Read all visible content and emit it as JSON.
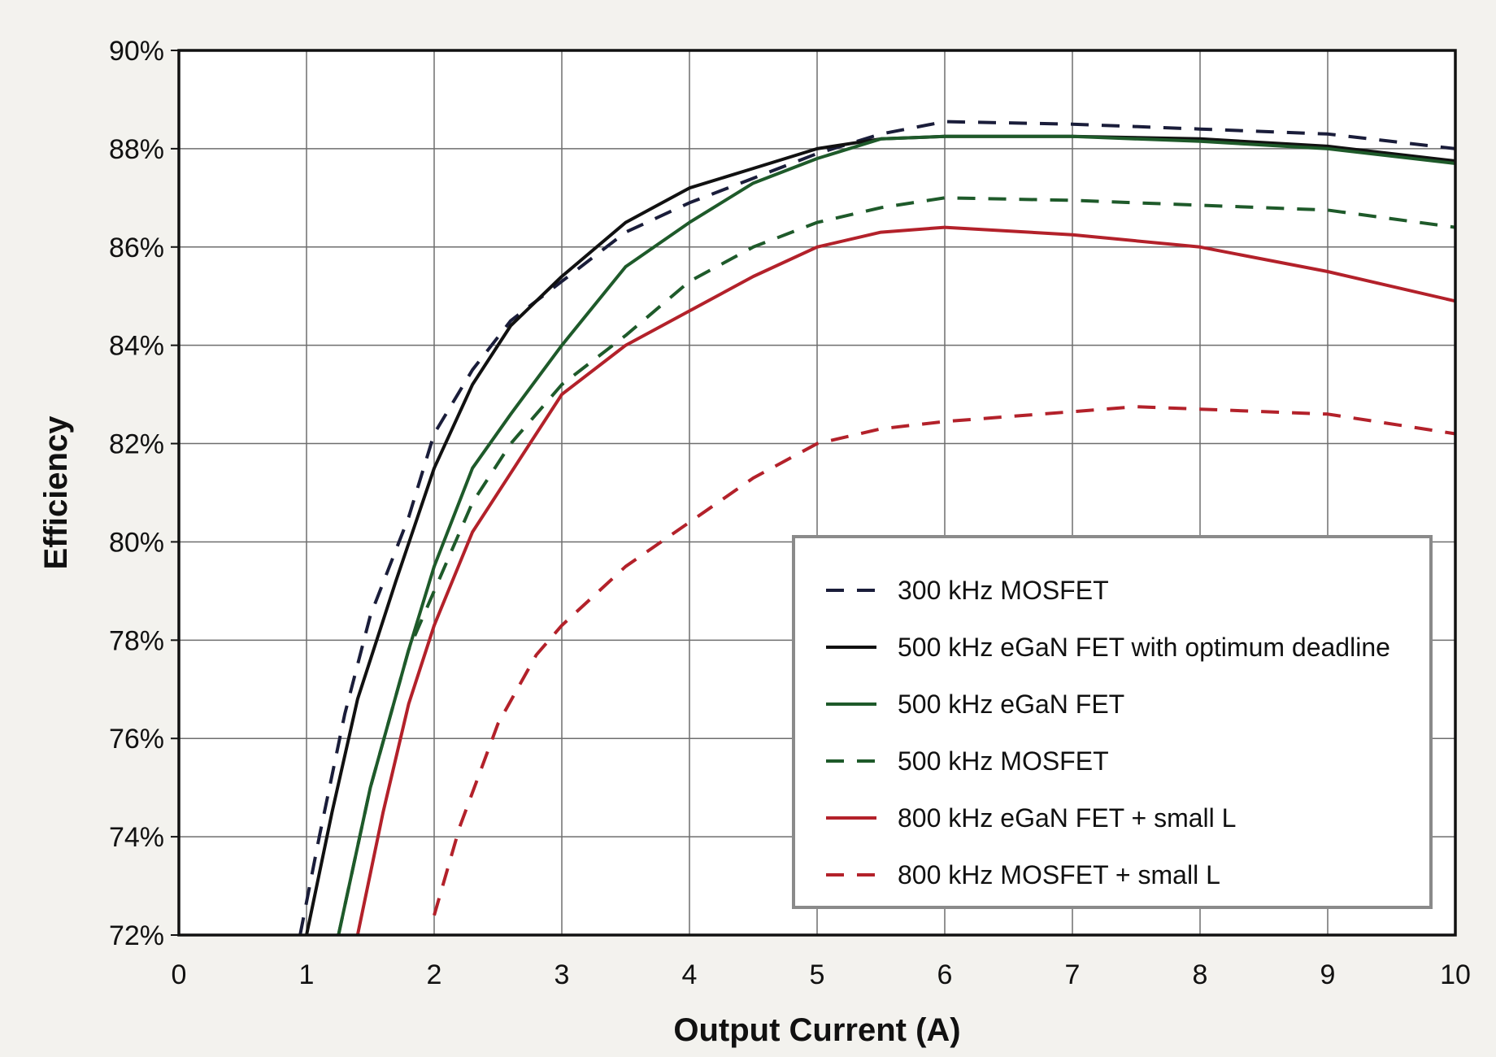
{
  "chart_data": {
    "type": "line",
    "title": "",
    "xlabel": "Output Current (A)",
    "ylabel": "Efficiency",
    "xlim": [
      0,
      10
    ],
    "ylim": [
      72,
      90
    ],
    "x_ticks": [
      0,
      1,
      2,
      3,
      4,
      5,
      6,
      7,
      8,
      9,
      10
    ],
    "y_ticks": [
      72,
      74,
      76,
      78,
      80,
      82,
      84,
      86,
      88,
      90
    ],
    "y_tick_labels": [
      "72%",
      "74%",
      "76%",
      "78%",
      "80%",
      "82%",
      "84%",
      "86%",
      "88%",
      "90%"
    ],
    "x_tick_labels": [
      "0",
      "1",
      "2",
      "3",
      "4",
      "5",
      "6",
      "7",
      "8",
      "9",
      "10"
    ],
    "grid": true,
    "legend_position": "bottom-right",
    "series": [
      {
        "name": "300 kHz MOSFET",
        "color": "#1a1d3a",
        "dash": "dashed",
        "points": [
          [
            0.95,
            72
          ],
          [
            1.1,
            74
          ],
          [
            1.3,
            76.5
          ],
          [
            1.5,
            78.5
          ],
          [
            1.8,
            80.5
          ],
          [
            2.0,
            82.2
          ],
          [
            2.3,
            83.5
          ],
          [
            2.6,
            84.5
          ],
          [
            3.0,
            85.3
          ],
          [
            3.5,
            86.3
          ],
          [
            4.0,
            86.9
          ],
          [
            4.5,
            87.4
          ],
          [
            5.0,
            87.9
          ],
          [
            5.5,
            88.3
          ],
          [
            6.0,
            88.55
          ],
          [
            7.0,
            88.5
          ],
          [
            8.0,
            88.4
          ],
          [
            9.0,
            88.3
          ],
          [
            10.0,
            88.0
          ]
        ]
      },
      {
        "name": "500 kHz eGaN FET with optimum deadline",
        "color": "#111111",
        "dash": "solid",
        "points": [
          [
            1.0,
            72
          ],
          [
            1.2,
            74.5
          ],
          [
            1.4,
            76.8
          ],
          [
            1.7,
            79.2
          ],
          [
            2.0,
            81.5
          ],
          [
            2.3,
            83.2
          ],
          [
            2.6,
            84.4
          ],
          [
            3.0,
            85.4
          ],
          [
            3.5,
            86.5
          ],
          [
            4.0,
            87.2
          ],
          [
            4.5,
            87.6
          ],
          [
            5.0,
            88.0
          ],
          [
            5.5,
            88.2
          ],
          [
            6.0,
            88.25
          ],
          [
            7.0,
            88.25
          ],
          [
            8.0,
            88.2
          ],
          [
            9.0,
            88.05
          ],
          [
            10.0,
            87.75
          ]
        ]
      },
      {
        "name": "500 kHz eGaN FET",
        "color": "#1e5a2a",
        "dash": "solid",
        "points": [
          [
            1.25,
            72
          ],
          [
            1.5,
            75
          ],
          [
            1.8,
            77.8
          ],
          [
            2.0,
            79.5
          ],
          [
            2.3,
            81.5
          ],
          [
            2.6,
            82.6
          ],
          [
            3.0,
            84.0
          ],
          [
            3.5,
            85.6
          ],
          [
            4.0,
            86.5
          ],
          [
            4.5,
            87.3
          ],
          [
            5.0,
            87.8
          ],
          [
            5.5,
            88.2
          ],
          [
            6.0,
            88.25
          ],
          [
            7.0,
            88.25
          ],
          [
            8.0,
            88.15
          ],
          [
            9.0,
            88.0
          ],
          [
            10.0,
            87.7
          ]
        ]
      },
      {
        "name": "500 kHz MOSFET",
        "color": "#1e5a2a",
        "dash": "dashed",
        "points": [
          [
            1.25,
            72
          ],
          [
            1.5,
            75
          ],
          [
            1.8,
            77.8
          ],
          [
            2.0,
            79.0
          ],
          [
            2.3,
            80.8
          ],
          [
            2.6,
            82.0
          ],
          [
            3.0,
            83.2
          ],
          [
            3.5,
            84.2
          ],
          [
            4.0,
            85.3
          ],
          [
            4.5,
            86.0
          ],
          [
            5.0,
            86.5
          ],
          [
            5.5,
            86.8
          ],
          [
            6.0,
            87.0
          ],
          [
            7.0,
            86.95
          ],
          [
            8.0,
            86.85
          ],
          [
            9.0,
            86.75
          ],
          [
            10.0,
            86.4
          ]
        ]
      },
      {
        "name": "800 kHz eGaN FET + small L",
        "color": "#b3212a",
        "dash": "solid",
        "points": [
          [
            1.4,
            72
          ],
          [
            1.6,
            74.5
          ],
          [
            1.8,
            76.7
          ],
          [
            2.0,
            78.3
          ],
          [
            2.3,
            80.2
          ],
          [
            2.6,
            81.4
          ],
          [
            3.0,
            83.0
          ],
          [
            3.5,
            84.0
          ],
          [
            4.0,
            84.7
          ],
          [
            4.5,
            85.4
          ],
          [
            5.0,
            86.0
          ],
          [
            5.5,
            86.3
          ],
          [
            6.0,
            86.4
          ],
          [
            7.0,
            86.25
          ],
          [
            8.0,
            86.0
          ],
          [
            9.0,
            85.5
          ],
          [
            10.0,
            84.9
          ]
        ]
      },
      {
        "name": "800 kHz MOSFET + small L",
        "color": "#b3212a",
        "dash": "dashed",
        "points": [
          [
            2.0,
            72.4
          ],
          [
            2.2,
            74.2
          ],
          [
            2.5,
            76.3
          ],
          [
            2.8,
            77.7
          ],
          [
            3.0,
            78.3
          ],
          [
            3.5,
            79.5
          ],
          [
            4.0,
            80.4
          ],
          [
            4.5,
            81.3
          ],
          [
            5.0,
            82.0
          ],
          [
            5.5,
            82.3
          ],
          [
            6.0,
            82.45
          ],
          [
            7.0,
            82.65
          ],
          [
            7.5,
            82.75
          ],
          [
            8.0,
            82.7
          ],
          [
            9.0,
            82.6
          ],
          [
            10.0,
            82.2
          ]
        ]
      }
    ]
  }
}
